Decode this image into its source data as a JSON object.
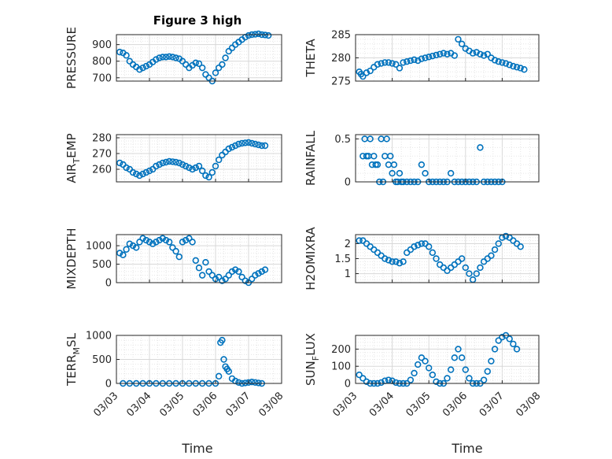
{
  "figure": {
    "title": "Figure 3 high",
    "xlabel": "Time"
  },
  "chart_data": [
    {
      "type": "scatter",
      "ylabel": "PRESSURE",
      "ylim": [
        680,
        960
      ],
      "yticks": [
        700,
        800,
        900
      ],
      "ytick_labels": [
        "700",
        "800",
        "900"
      ],
      "xlim": [
        0,
        5
      ],
      "xticks": [
        0,
        1,
        2,
        3,
        4,
        5
      ],
      "xtick_labels": [
        "03/03",
        "03/04",
        "03/05",
        "03/06",
        "03/07",
        "03/08"
      ],
      "grid": true,
      "series": [
        {
          "color": "#0072BD",
          "x": [
            0.1,
            0.2,
            0.3,
            0.4,
            0.5,
            0.6,
            0.7,
            0.8,
            0.9,
            1.0,
            1.1,
            1.2,
            1.3,
            1.4,
            1.5,
            1.6,
            1.7,
            1.8,
            1.9,
            2.0,
            2.1,
            2.2,
            2.3,
            2.4,
            2.5,
            2.6,
            2.7,
            2.8,
            2.9,
            3.0,
            3.1,
            3.2,
            3.3,
            3.4,
            3.5,
            3.6,
            3.7,
            3.8,
            3.9,
            4.0,
            4.1,
            4.2,
            4.3,
            4.4,
            4.5,
            4.6
          ],
          "y": [
            855,
            850,
            835,
            800,
            780,
            765,
            750,
            760,
            770,
            780,
            795,
            810,
            820,
            825,
            825,
            828,
            825,
            820,
            815,
            800,
            780,
            760,
            775,
            790,
            785,
            760,
            720,
            700,
            680,
            730,
            760,
            780,
            820,
            860,
            880,
            900,
            915,
            930,
            945,
            955,
            960,
            962,
            965,
            960,
            958,
            955
          ]
        }
      ]
    },
    {
      "type": "scatter",
      "ylabel": "THETA",
      "ylim": [
        275,
        285
      ],
      "yticks": [
        275,
        280,
        285
      ],
      "ytick_labels": [
        "275",
        "280",
        "285"
      ],
      "xlim": [
        0,
        5
      ],
      "xticks": [
        0,
        1,
        2,
        3,
        4,
        5
      ],
      "xtick_labels": [
        "03/03",
        "03/04",
        "03/05",
        "03/06",
        "03/07",
        "03/08"
      ],
      "grid": true,
      "series": [
        {
          "color": "#0072BD",
          "x": [
            0.1,
            0.15,
            0.2,
            0.3,
            0.4,
            0.5,
            0.6,
            0.7,
            0.8,
            0.9,
            1.0,
            1.1,
            1.2,
            1.3,
            1.4,
            1.5,
            1.6,
            1.7,
            1.8,
            1.9,
            2.0,
            2.1,
            2.2,
            2.3,
            2.4,
            2.5,
            2.6,
            2.7,
            2.8,
            2.9,
            3.0,
            3.1,
            3.2,
            3.3,
            3.4,
            3.5,
            3.6,
            3.7,
            3.8,
            3.9,
            4.0,
            4.1,
            4.2,
            4.3,
            4.4,
            4.5,
            4.6
          ],
          "y": [
            277,
            276.5,
            276,
            276.8,
            277.2,
            278,
            278.6,
            278.8,
            279,
            279,
            278.8,
            278.6,
            277.8,
            279,
            279.2,
            279.4,
            279.6,
            279.4,
            279.8,
            280,
            280.2,
            280.4,
            280.6,
            280.8,
            281,
            280.8,
            281,
            280.5,
            284,
            283,
            282,
            281.5,
            281,
            281.2,
            280.8,
            280.5,
            280.8,
            280,
            279.5,
            279.2,
            279,
            278.8,
            278.5,
            278.2,
            278,
            277.8,
            277.5
          ]
        }
      ]
    },
    {
      "type": "scatter",
      "ylabel": "AIR_TEMP",
      "ylim": [
        252,
        282
      ],
      "yticks": [
        260,
        270,
        280
      ],
      "ytick_labels": [
        "260",
        "270",
        "280"
      ],
      "xlim": [
        0,
        5
      ],
      "xticks": [
        0,
        1,
        2,
        3,
        4,
        5
      ],
      "xtick_labels": [
        "03/03",
        "03/04",
        "03/05",
        "03/06",
        "03/07",
        "03/08"
      ],
      "grid": true,
      "series": [
        {
          "color": "#0072BD",
          "x": [
            0.1,
            0.2,
            0.3,
            0.4,
            0.5,
            0.6,
            0.7,
            0.8,
            0.9,
            1.0,
            1.1,
            1.2,
            1.3,
            1.4,
            1.5,
            1.6,
            1.7,
            1.8,
            1.9,
            2.0,
            2.1,
            2.2,
            2.3,
            2.4,
            2.5,
            2.6,
            2.7,
            2.8,
            2.9,
            3.0,
            3.1,
            3.2,
            3.3,
            3.4,
            3.5,
            3.6,
            3.7,
            3.8,
            3.9,
            4.0,
            4.1,
            4.2,
            4.3,
            4.4,
            4.5
          ],
          "y": [
            264,
            263,
            261,
            260,
            258,
            257,
            256,
            257,
            258,
            259,
            260,
            262,
            263,
            264,
            264.5,
            265,
            264.8,
            264.5,
            264,
            263,
            262,
            261,
            260,
            261,
            262,
            259,
            256,
            255,
            258,
            262,
            266,
            269,
            271,
            273,
            274,
            275,
            276,
            276.5,
            276.8,
            277,
            276.5,
            276,
            275.5,
            275,
            275
          ]
        }
      ]
    },
    {
      "type": "scatter",
      "ylabel": "RAINFALL",
      "ylim": [
        0,
        0.55
      ],
      "yticks": [
        0,
        0.5
      ],
      "ytick_labels": [
        "0",
        "0.5"
      ],
      "xlim": [
        0,
        5
      ],
      "xticks": [
        0,
        1,
        2,
        3,
        4,
        5
      ],
      "xtick_labels": [
        "03/03",
        "03/04",
        "03/05",
        "03/06",
        "03/07",
        "03/08"
      ],
      "grid": true,
      "series": [
        {
          "color": "#0072BD",
          "x": [
            0.2,
            0.25,
            0.3,
            0.35,
            0.4,
            0.45,
            0.5,
            0.55,
            0.6,
            0.65,
            0.7,
            0.75,
            0.8,
            0.85,
            0.9,
            0.95,
            1.0,
            1.05,
            1.1,
            1.15,
            1.2,
            1.25,
            1.3,
            1.4,
            1.5,
            1.6,
            1.7,
            1.8,
            1.9,
            2.0,
            2.1,
            2.2,
            2.3,
            2.4,
            2.5,
            2.6,
            2.7,
            2.8,
            2.9,
            3.0,
            3.1,
            3.2,
            3.3,
            3.4,
            3.5,
            3.6,
            3.7,
            3.8,
            3.9,
            4.0
          ],
          "y": [
            0.3,
            0.5,
            0.3,
            0.3,
            0.5,
            0.2,
            0.3,
            0.2,
            0.2,
            0,
            0.5,
            0,
            0.3,
            0.5,
            0.2,
            0.3,
            0.1,
            0.2,
            0,
            0,
            0.1,
            0,
            0,
            0,
            0,
            0,
            0,
            0.2,
            0.1,
            0,
            0,
            0,
            0,
            0,
            0,
            0.1,
            0,
            0,
            0,
            0,
            0,
            0,
            0,
            0.4,
            0,
            0,
            0,
            0,
            0,
            0
          ]
        }
      ]
    },
    {
      "type": "scatter",
      "ylabel": "MIXDEPTH",
      "ylim": [
        0,
        1300
      ],
      "yticks": [
        0,
        500,
        1000
      ],
      "ytick_labels": [
        "0",
        "500",
        "1000"
      ],
      "xlim": [
        0,
        5
      ],
      "xticks": [
        0,
        1,
        2,
        3,
        4,
        5
      ],
      "xtick_labels": [
        "03/03",
        "03/04",
        "03/05",
        "03/06",
        "03/07",
        "03/08"
      ],
      "grid": true,
      "series": [
        {
          "color": "#0072BD",
          "x": [
            0.1,
            0.2,
            0.3,
            0.4,
            0.5,
            0.6,
            0.7,
            0.8,
            0.9,
            1.0,
            1.1,
            1.2,
            1.3,
            1.4,
            1.5,
            1.6,
            1.7,
            1.8,
            1.9,
            2.0,
            2.1,
            2.2,
            2.3,
            2.4,
            2.5,
            2.6,
            2.7,
            2.8,
            2.9,
            3.0,
            3.1,
            3.2,
            3.3,
            3.4,
            3.5,
            3.6,
            3.7,
            3.8,
            3.9,
            4.0,
            4.1,
            4.2,
            4.3,
            4.4,
            4.5
          ],
          "y": [
            800,
            750,
            900,
            1050,
            1000,
            950,
            1100,
            1200,
            1150,
            1100,
            1050,
            1100,
            1150,
            1200,
            1150,
            1100,
            950,
            850,
            700,
            1100,
            1150,
            1200,
            1100,
            600,
            400,
            200,
            550,
            300,
            200,
            100,
            150,
            50,
            100,
            200,
            300,
            350,
            300,
            150,
            50,
            0,
            100,
            200,
            250,
            300,
            350
          ]
        }
      ]
    },
    {
      "type": "scatter",
      "ylabel": "H2OMIXRA",
      "ylim": [
        0.7,
        2.3
      ],
      "yticks": [
        1,
        1.5,
        2
      ],
      "ytick_labels": [
        "1",
        "1.5",
        "2"
      ],
      "xlim": [
        0,
        5
      ],
      "xticks": [
        0,
        1,
        2,
        3,
        4,
        5
      ],
      "xtick_labels": [
        "03/03",
        "03/04",
        "03/05",
        "03/06",
        "03/07",
        "03/08"
      ],
      "grid": true,
      "series": [
        {
          "color": "#0072BD",
          "x": [
            0.1,
            0.2,
            0.3,
            0.4,
            0.5,
            0.6,
            0.7,
            0.8,
            0.9,
            1.0,
            1.1,
            1.2,
            1.3,
            1.4,
            1.5,
            1.6,
            1.7,
            1.8,
            1.9,
            2.0,
            2.1,
            2.2,
            2.3,
            2.4,
            2.5,
            2.6,
            2.7,
            2.8,
            2.9,
            3.0,
            3.1,
            3.2,
            3.3,
            3.4,
            3.5,
            3.6,
            3.7,
            3.8,
            3.9,
            4.0,
            4.1,
            4.2,
            4.3,
            4.4,
            4.5
          ],
          "y": [
            2.1,
            2.1,
            2.0,
            1.9,
            1.8,
            1.7,
            1.6,
            1.5,
            1.45,
            1.4,
            1.4,
            1.35,
            1.4,
            1.7,
            1.8,
            1.9,
            1.95,
            2.0,
            2.0,
            1.9,
            1.7,
            1.5,
            1.3,
            1.2,
            1.1,
            1.2,
            1.3,
            1.4,
            1.5,
            1.2,
            1.0,
            0.8,
            1.0,
            1.2,
            1.4,
            1.5,
            1.6,
            1.8,
            2.0,
            2.2,
            2.25,
            2.2,
            2.1,
            2.0,
            1.9
          ]
        }
      ]
    },
    {
      "type": "scatter",
      "ylabel": "TERR_MSL",
      "ylim": [
        0,
        1000
      ],
      "yticks": [
        0,
        500,
        1000
      ],
      "ytick_labels": [
        "0",
        "500",
        "1000"
      ],
      "xlim": [
        0,
        5
      ],
      "xticks": [
        0,
        1,
        2,
        3,
        4,
        5
      ],
      "xtick_labels": [
        "03/03",
        "03/04",
        "03/05",
        "03/06",
        "03/07",
        "03/08"
      ],
      "grid": true,
      "series": [
        {
          "color": "#0072BD",
          "x": [
            0.2,
            0.4,
            0.6,
            0.8,
            1.0,
            1.2,
            1.4,
            1.6,
            1.8,
            2.0,
            2.2,
            2.4,
            2.6,
            2.8,
            3.0,
            3.1,
            3.15,
            3.2,
            3.25,
            3.3,
            3.35,
            3.4,
            3.5,
            3.6,
            3.7,
            3.8,
            3.9,
            4.0,
            4.1,
            4.2,
            4.3,
            4.4
          ],
          "y": [
            0,
            0,
            0,
            0,
            0,
            0,
            0,
            0,
            0,
            0,
            0,
            0,
            0,
            0,
            0,
            150,
            850,
            900,
            500,
            350,
            300,
            250,
            100,
            50,
            20,
            0,
            10,
            20,
            30,
            20,
            10,
            0
          ]
        }
      ]
    },
    {
      "type": "scatter",
      "ylabel": "SUN_FLUX",
      "ylim": [
        0,
        280
      ],
      "yticks": [
        0,
        100,
        200
      ],
      "ytick_labels": [
        "0",
        "100",
        "200"
      ],
      "xlim": [
        0,
        5
      ],
      "xticks": [
        0,
        1,
        2,
        3,
        4,
        5
      ],
      "xtick_labels": [
        "03/03",
        "03/04",
        "03/05",
        "03/06",
        "03/07",
        "03/08"
      ],
      "grid": true,
      "series": [
        {
          "color": "#0072BD",
          "x": [
            0.1,
            0.2,
            0.3,
            0.4,
            0.5,
            0.6,
            0.7,
            0.8,
            0.9,
            1.0,
            1.1,
            1.2,
            1.3,
            1.4,
            1.5,
            1.6,
            1.7,
            1.8,
            1.9,
            2.0,
            2.1,
            2.2,
            2.3,
            2.4,
            2.5,
            2.6,
            2.7,
            2.8,
            2.9,
            3.0,
            3.1,
            3.2,
            3.3,
            3.4,
            3.5,
            3.6,
            3.7,
            3.8,
            3.9,
            4.0,
            4.1,
            4.2,
            4.3,
            4.4
          ],
          "y": [
            50,
            30,
            10,
            0,
            0,
            0,
            5,
            15,
            20,
            15,
            5,
            0,
            0,
            0,
            20,
            60,
            110,
            150,
            130,
            90,
            50,
            10,
            0,
            0,
            30,
            80,
            150,
            200,
            150,
            80,
            30,
            0,
            0,
            0,
            20,
            70,
            130,
            200,
            250,
            270,
            280,
            260,
            230,
            200
          ]
        }
      ]
    }
  ]
}
